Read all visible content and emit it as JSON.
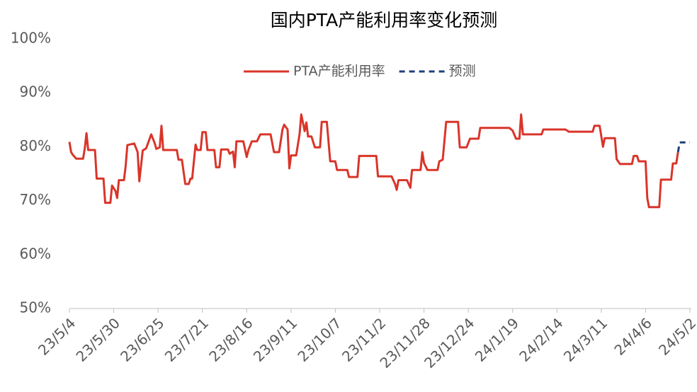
{
  "chart_data": {
    "type": "line",
    "title": "国内PTA产能利用率变化预测",
    "ylim": [
      50,
      100
    ],
    "yticks": [
      {
        "value": 50,
        "label": "50%"
      },
      {
        "value": 60,
        "label": "60%"
      },
      {
        "value": 70,
        "label": "70%"
      },
      {
        "value": 80,
        "label": "80%"
      },
      {
        "value": 90,
        "label": "90%"
      },
      {
        "value": 100,
        "label": "100%"
      }
    ],
    "xlim": [
      "2023-05-04",
      "2024-05-02"
    ],
    "xticks": [
      {
        "value": "2023-05-04",
        "label": "23/5/4"
      },
      {
        "value": "2023-05-30",
        "label": "23/5/30"
      },
      {
        "value": "2023-06-25",
        "label": "23/6/25"
      },
      {
        "value": "2023-07-21",
        "label": "23/7/21"
      },
      {
        "value": "2023-08-16",
        "label": "23/8/16"
      },
      {
        "value": "2023-09-11",
        "label": "23/9/11"
      },
      {
        "value": "2023-10-07",
        "label": "23/10/7"
      },
      {
        "value": "2023-11-02",
        "label": "23/11/2"
      },
      {
        "value": "2023-11-28",
        "label": "23/11/28"
      },
      {
        "value": "2023-12-24",
        "label": "23/12/24"
      },
      {
        "value": "2024-01-19",
        "label": "24/1/19"
      },
      {
        "value": "2024-02-14",
        "label": "24/2/14"
      },
      {
        "value": "2024-03-11",
        "label": "24/3/11"
      },
      {
        "value": "2024-04-06",
        "label": "24/4/6"
      },
      {
        "value": "2024-05-02",
        "label": "24/5/2"
      }
    ],
    "legend": "top",
    "series": [
      {
        "name": "PTA产能利用率",
        "color": "#d9352a",
        "dash": false,
        "x": [
          "2023-05-04",
          "2023-05-05",
          "2023-05-06",
          "2023-05-08",
          "2023-05-12",
          "2023-05-13",
          "2023-05-14",
          "2023-05-15",
          "2023-05-19",
          "2023-05-20",
          "2023-05-24",
          "2023-05-25",
          "2023-05-28",
          "2023-05-29",
          "2023-05-31",
          "2023-06-01",
          "2023-06-02",
          "2023-06-05",
          "2023-06-06",
          "2023-06-07",
          "2023-06-11",
          "2023-06-13",
          "2023-06-14",
          "2023-06-16",
          "2023-06-18",
          "2023-06-21",
          "2023-06-23",
          "2023-06-24",
          "2023-06-26",
          "2023-06-27",
          "2023-06-28",
          "2023-07-06",
          "2023-07-07",
          "2023-07-09",
          "2023-07-11",
          "2023-07-13",
          "2023-07-14",
          "2023-07-15",
          "2023-07-17",
          "2023-07-18",
          "2023-07-20",
          "2023-07-21",
          "2023-07-23",
          "2023-07-24",
          "2023-07-28",
          "2023-07-29",
          "2023-07-31",
          "2023-08-01",
          "2023-08-05",
          "2023-08-06",
          "2023-08-08",
          "2023-08-09",
          "2023-08-10",
          "2023-08-14",
          "2023-08-16",
          "2023-08-17",
          "2023-08-19",
          "2023-08-22",
          "2023-08-24",
          "2023-08-30",
          "2023-09-01",
          "2023-09-04",
          "2023-09-06",
          "2023-09-07",
          "2023-09-09",
          "2023-09-10",
          "2023-09-11",
          "2023-09-14",
          "2023-09-16",
          "2023-09-17",
          "2023-09-19",
          "2023-09-20",
          "2023-09-21",
          "2023-09-23",
          "2023-09-25",
          "2023-09-28",
          "2023-09-29",
          "2023-10-02",
          "2023-10-04",
          "2023-10-07",
          "2023-10-08",
          "2023-10-14",
          "2023-10-15",
          "2023-10-20",
          "2023-10-21",
          "2023-10-31",
          "2023-11-01",
          "2023-11-09",
          "2023-11-11",
          "2023-11-12",
          "2023-11-13",
          "2023-11-18",
          "2023-11-20",
          "2023-11-21",
          "2023-11-26",
          "2023-11-27",
          "2023-11-28",
          "2023-11-30",
          "2023-12-06",
          "2023-12-07",
          "2023-12-09",
          "2023-12-11",
          "2023-12-18",
          "2023-12-19",
          "2023-12-23",
          "2023-12-25",
          "2023-12-30",
          "2023-12-31",
          "2024-01-17",
          "2024-01-19",
          "2024-01-21",
          "2024-01-23",
          "2024-01-24",
          "2024-01-25",
          "2024-02-05",
          "2024-02-06",
          "2024-02-19",
          "2024-02-21",
          "2024-03-06",
          "2024-03-07",
          "2024-03-10",
          "2024-03-12",
          "2024-03-13",
          "2024-03-19",
          "2024-03-20",
          "2024-03-22",
          "2024-03-29",
          "2024-03-30",
          "2024-04-01",
          "2024-04-02",
          "2024-04-06",
          "2024-04-07",
          "2024-04-08",
          "2024-04-14",
          "2024-04-15",
          "2024-04-21",
          "2024-04-22",
          "2024-04-24",
          "2024-04-25"
        ],
        "values": [
          80.9,
          79,
          78.5,
          77.8,
          77.8,
          79.7,
          82.5,
          79.4,
          79.4,
          74.1,
          74.1,
          69.6,
          69.6,
          72.8,
          71.8,
          70.5,
          73.8,
          73.8,
          76.4,
          80.3,
          80.6,
          79,
          73.6,
          79.3,
          79.7,
          82.3,
          80.7,
          79.6,
          79.9,
          83.9,
          79.4,
          79.4,
          77.6,
          77.6,
          73.1,
          73.1,
          74.1,
          74.1,
          80.4,
          79.4,
          79.4,
          82.7,
          82.7,
          79.4,
          79.4,
          76.2,
          76.2,
          79.5,
          79.5,
          78.7,
          79.1,
          76.2,
          81,
          81,
          78.1,
          79.4,
          81,
          81,
          82.3,
          82.3,
          79,
          79,
          83.2,
          84.1,
          83.2,
          76,
          78.4,
          78.4,
          82.3,
          86,
          82.9,
          84.5,
          81.9,
          81.9,
          79.9,
          79.9,
          84.6,
          84.6,
          77.3,
          77.3,
          75.7,
          75.7,
          74.4,
          74.4,
          78.3,
          78.3,
          74.5,
          74.5,
          73.1,
          72,
          73.8,
          73.8,
          72.4,
          75.7,
          75.7,
          79,
          77,
          75.7,
          75.7,
          77.3,
          77.6,
          84.6,
          84.6,
          79.9,
          79.9,
          81.5,
          81.5,
          83.5,
          83.5,
          83,
          81.5,
          81.5,
          86,
          82.3,
          82.3,
          83.2,
          83.2,
          82.8,
          82.8,
          83.9,
          83.9,
          80,
          81.6,
          81.6,
          77.7,
          76.8,
          76.8,
          78.3,
          78.3,
          77.3,
          77.3,
          70.5,
          68.8,
          68.8,
          73.9,
          73.9,
          76.9,
          76.9,
          79
        ]
      },
      {
        "name": "预测",
        "color": "#1f3f7a",
        "dash": true,
        "x": [
          "2024-04-25",
          "2024-04-26",
          "2024-05-02"
        ],
        "values": [
          79,
          80.8,
          80.8
        ]
      }
    ]
  }
}
